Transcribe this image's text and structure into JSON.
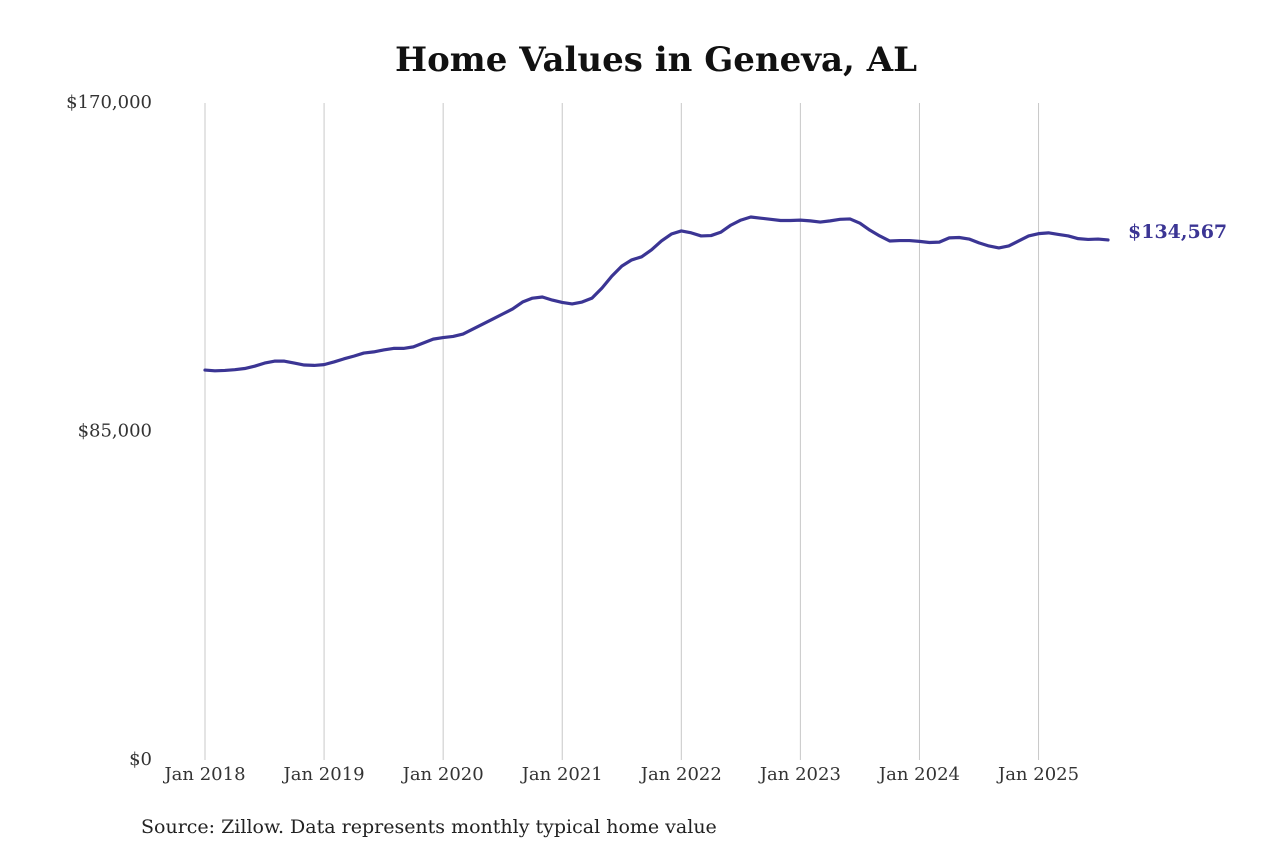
{
  "chart_data": {
    "type": "line",
    "title": "Home Values in Geneva, AL",
    "source": "Source: Zillow. Data represents monthly typical home value",
    "x": [
      "2018-01",
      "2018-02",
      "2018-03",
      "2018-04",
      "2018-05",
      "2018-06",
      "2018-07",
      "2018-08",
      "2018-09",
      "2018-10",
      "2018-11",
      "2018-12",
      "2019-01",
      "2019-02",
      "2019-03",
      "2019-04",
      "2019-05",
      "2019-06",
      "2019-07",
      "2019-08",
      "2019-09",
      "2019-10",
      "2019-11",
      "2019-12",
      "2020-01",
      "2020-02",
      "2020-03",
      "2020-04",
      "2020-05",
      "2020-06",
      "2020-07",
      "2020-08",
      "2020-09",
      "2020-10",
      "2020-11",
      "2020-12",
      "2021-01",
      "2021-02",
      "2021-03",
      "2021-04",
      "2021-05",
      "2021-06",
      "2021-07",
      "2021-08",
      "2021-09",
      "2021-10",
      "2021-11",
      "2021-12",
      "2022-01",
      "2022-02",
      "2022-03",
      "2022-04",
      "2022-05",
      "2022-06",
      "2022-07",
      "2022-08",
      "2022-09",
      "2022-10",
      "2022-11",
      "2022-12",
      "2023-01",
      "2023-02",
      "2023-03",
      "2023-04",
      "2023-05",
      "2023-06",
      "2023-07",
      "2023-08",
      "2023-09",
      "2023-10",
      "2023-11",
      "2023-12",
      "2024-01",
      "2024-02",
      "2024-03",
      "2024-04",
      "2024-05",
      "2024-06",
      "2024-07",
      "2024-08",
      "2024-09",
      "2024-10",
      "2024-11",
      "2024-12",
      "2025-01",
      "2025-02",
      "2025-03",
      "2025-04",
      "2025-05",
      "2025-06",
      "2025-07",
      "2025-08"
    ],
    "series": [
      {
        "color": "#3b3594",
        "values": [
          100900,
          100700,
          100800,
          101000,
          101300,
          101900,
          102700,
          103200,
          103200,
          102700,
          102200,
          102100,
          102300,
          103000,
          103800,
          104500,
          105300,
          105600,
          106100,
          106500,
          106500,
          106900,
          107900,
          108900,
          109300,
          109600,
          110200,
          111500,
          112800,
          114100,
          115400,
          116700,
          118500,
          119500,
          119800,
          119000,
          118400,
          118000,
          118500,
          119500,
          122100,
          125200,
          127800,
          129400,
          130200,
          132000,
          134300,
          136100,
          136900,
          136400,
          135600,
          135700,
          136600,
          138400,
          139700,
          140500,
          140200,
          139900,
          139600,
          139600,
          139700,
          139500,
          139200,
          139500,
          139900,
          140000,
          138900,
          137100,
          135600,
          134300,
          134400,
          134400,
          134200,
          133900,
          134000,
          135100,
          135200,
          134800,
          133800,
          133000,
          132500,
          133000,
          134300,
          135600,
          136200,
          136400,
          136000,
          135600,
          134900,
          134700,
          134800,
          134567
        ],
        "value_labels": [
          null,
          null,
          null,
          null,
          null,
          null,
          null,
          null,
          null,
          null,
          null,
          null,
          null,
          null,
          null,
          null,
          null,
          null,
          null,
          null,
          null,
          null,
          null,
          null,
          null,
          null,
          null,
          null,
          null,
          null,
          null,
          null,
          null,
          null,
          null,
          null,
          null,
          null,
          null,
          null,
          null,
          null,
          null,
          null,
          null,
          null,
          null,
          null,
          null,
          null,
          null,
          null,
          null,
          null,
          null,
          null,
          null,
          null,
          null,
          null,
          null,
          null,
          null,
          null,
          null,
          null,
          null,
          null,
          null,
          null,
          null,
          null,
          null,
          null,
          null,
          null,
          null,
          null,
          null,
          null,
          null,
          null,
          null,
          null,
          null,
          null,
          null,
          null,
          null,
          null,
          null,
          "$134,567"
        ]
      }
    ],
    "xlim": [
      "2018-01",
      "2025-08"
    ],
    "xticks": [
      {
        "value": "2018-01",
        "label": "Jan 2018"
      },
      {
        "value": "2019-01",
        "label": "Jan 2019"
      },
      {
        "value": "2020-01",
        "label": "Jan 2020"
      },
      {
        "value": "2021-01",
        "label": "Jan 2021"
      },
      {
        "value": "2022-01",
        "label": "Jan 2022"
      },
      {
        "value": "2023-01",
        "label": "Jan 2023"
      },
      {
        "value": "2024-01",
        "label": "Jan 2024"
      },
      {
        "value": "2025-01",
        "label": "Jan 2025"
      }
    ],
    "ylim": [
      0,
      170000
    ],
    "yticks": [
      {
        "value": 0,
        "label": "$0"
      },
      {
        "value": 85000,
        "label": "$85,000"
      },
      {
        "value": 170000,
        "label": "$170,000"
      }
    ],
    "grid": "x"
  }
}
